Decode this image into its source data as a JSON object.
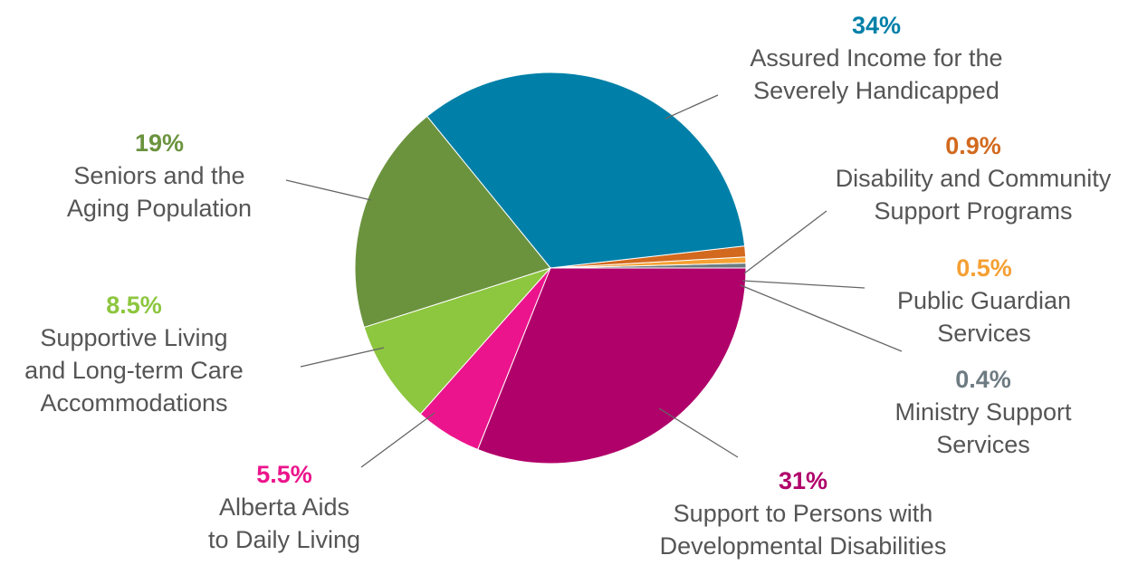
{
  "chart_data": {
    "type": "pie",
    "start_angle_deg": 0,
    "direction": "counterclockwise",
    "series": [
      {
        "name": "Ministry Support Services",
        "percent_label": "0.4%",
        "value": 0.4,
        "color": "#6d7b82",
        "label_lines": [
          "Ministry Support",
          "Services"
        ]
      },
      {
        "name": "Public Guardian Services",
        "percent_label": "0.5%",
        "value": 0.5,
        "color": "#f5a033",
        "label_lines": [
          "Public Guardian",
          "Services"
        ]
      },
      {
        "name": "Disability and Community Support Programs",
        "percent_label": "0.9%",
        "value": 0.9,
        "color": "#d2691e",
        "label_lines": [
          "Disability and Community",
          "Support Programs"
        ]
      },
      {
        "name": "Assured Income for the Severely Handicapped",
        "percent_label": "34%",
        "value": 34,
        "color": "#0080a8",
        "label_lines": [
          "Assured Income for the",
          "Severely Handicapped"
        ]
      },
      {
        "name": "Seniors and the Aging Population",
        "percent_label": "19%",
        "value": 19,
        "color": "#6b933e",
        "label_lines": [
          "Seniors and the",
          "Aging Population"
        ]
      },
      {
        "name": "Supportive Living and Long-term Care Accommodations",
        "percent_label": "8.5%",
        "value": 8.5,
        "color": "#8dc63f",
        "label_lines": [
          "Supportive Living",
          "and Long-term Care",
          "Accommodations"
        ]
      },
      {
        "name": "Alberta Aids to Daily Living",
        "percent_label": "5.5%",
        "value": 5.5,
        "color": "#ec148c",
        "label_lines": [
          "Alberta Aids",
          "to Daily Living"
        ]
      },
      {
        "name": "Support to Persons with Developmental Disabilities",
        "percent_label": "31%",
        "value": 31,
        "color": "#b0006a",
        "label_lines": [
          "Support to Persons with",
          "Developmental Disabilities"
        ]
      }
    ]
  }
}
